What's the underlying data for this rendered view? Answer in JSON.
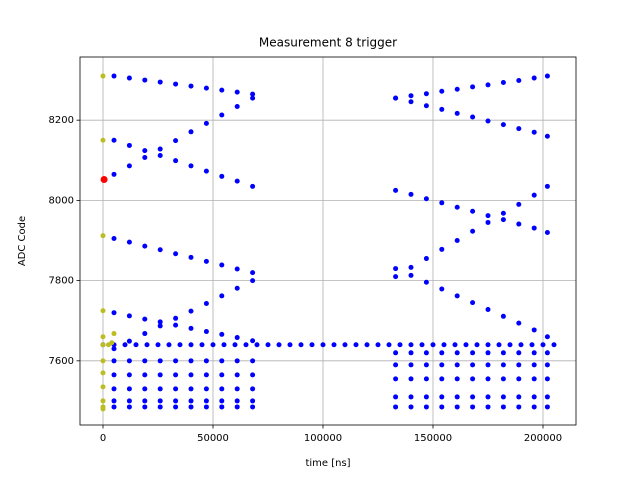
{
  "chart_data": {
    "type": "scatter",
    "title": "Measurement 8 trigger",
    "xlabel": "time [ns]",
    "ylabel": "ADC Code",
    "xlim": [
      -10455,
      215000
    ],
    "ylim": [
      7440,
      8357.5
    ],
    "xticks": [
      0,
      50000,
      100000,
      150000,
      200000
    ],
    "yticks": [
      7600,
      7800,
      8000,
      8200
    ],
    "grid": true,
    "series": [
      {
        "color": "#0000ff",
        "x": [
          0,
          5000,
          10000,
          15000,
          20000,
          25000,
          30000,
          35000,
          40000,
          45000,
          50000,
          55000,
          60000,
          65000,
          70000,
          75000,
          80000,
          85000,
          90000,
          95000,
          100000,
          105000,
          110000,
          115000,
          120000,
          125000,
          130000,
          135000,
          140000,
          145000,
          150000,
          155000,
          160000,
          165000,
          170000,
          175000,
          180000,
          185000,
          190000,
          195000,
          200000,
          205000
        ],
        "values": [
          7640,
          7640,
          7640,
          7640,
          7640,
          7640,
          7640,
          7640,
          7640,
          7640,
          7640,
          7640,
          7640,
          7640,
          7640,
          7640,
          7640,
          7640,
          7640,
          7640,
          7640,
          7640,
          7640,
          7640,
          7640,
          7640,
          7640,
          7640,
          7640,
          7640,
          7640,
          7640,
          7640,
          7640,
          7640,
          7640,
          7640,
          7640,
          7640,
          7640,
          7640,
          7640
        ]
      },
      {
        "color": "#0000ff",
        "x": [
          5000,
          12000,
          19000,
          26000,
          33000,
          40000,
          47000,
          54000,
          61000,
          68000
        ],
        "values": [
          8310,
          8305,
          8300,
          8295,
          8290,
          8285,
          8280,
          8275,
          8270,
          8265
        ]
      },
      {
        "color": "#0000ff",
        "x": [
          5000,
          12000,
          19000,
          26000,
          33000,
          40000,
          47000,
          54000,
          61000,
          68000
        ],
        "values": [
          8065,
          8086,
          8107,
          8128,
          8149,
          8171,
          8192,
          8213,
          8234,
          8255
        ]
      },
      {
        "color": "#0000ff",
        "x": [
          5000,
          12000,
          19000,
          26000,
          33000,
          40000,
          47000,
          54000,
          61000,
          68000
        ],
        "values": [
          8150,
          8137,
          8124,
          8112,
          8099,
          8086,
          8073,
          8060,
          8048,
          8035
        ]
      },
      {
        "color": "#0000ff",
        "x": [
          5000,
          12000,
          19000,
          26000,
          33000,
          40000,
          47000,
          54000,
          61000,
          68000
        ],
        "values": [
          7905,
          7896,
          7886,
          7877,
          7867,
          7858,
          7848,
          7839,
          7829,
          7820
        ]
      },
      {
        "color": "#0000ff",
        "x": [
          5000,
          12000,
          19000,
          26000,
          33000,
          40000,
          47000,
          54000,
          61000,
          68000
        ],
        "values": [
          7630,
          7649,
          7668,
          7687,
          7706,
          7724,
          7743,
          7762,
          7781,
          7800
        ]
      },
      {
        "color": "#0000ff",
        "x": [
          5000,
          12000,
          19000,
          26000,
          33000,
          40000,
          47000,
          54000,
          61000,
          68000
        ],
        "values": [
          7720,
          7712,
          7704,
          7697,
          7689,
          7681,
          7673,
          7666,
          7658,
          7650
        ]
      },
      {
        "color": "#0000ff",
        "x": [
          5000,
          12000,
          19000,
          26000,
          33000,
          40000,
          47000,
          54000,
          61000,
          68000
        ],
        "values": [
          7600,
          7600,
          7600,
          7600,
          7600,
          7600,
          7600,
          7600,
          7600,
          7600
        ]
      },
      {
        "color": "#0000ff",
        "x": [
          5000,
          12000,
          19000,
          26000,
          33000,
          40000,
          47000,
          54000,
          61000,
          68000
        ],
        "values": [
          7565,
          7565,
          7565,
          7565,
          7565,
          7565,
          7565,
          7565,
          7565,
          7565
        ]
      },
      {
        "color": "#0000ff",
        "x": [
          5000,
          12000,
          19000,
          26000,
          33000,
          40000,
          47000,
          54000,
          61000,
          68000
        ],
        "values": [
          7530,
          7530,
          7530,
          7530,
          7530,
          7530,
          7530,
          7530,
          7530,
          7530
        ]
      },
      {
        "color": "#0000ff",
        "x": [
          5000,
          12000,
          19000,
          26000,
          33000,
          40000,
          47000,
          54000,
          61000,
          68000
        ],
        "values": [
          7500,
          7500,
          7500,
          7500,
          7500,
          7500,
          7500,
          7500,
          7500,
          7500
        ]
      },
      {
        "color": "#0000ff",
        "x": [
          5000,
          12000,
          19000,
          26000,
          33000,
          40000,
          47000,
          54000,
          61000,
          68000
        ],
        "values": [
          7485,
          7485,
          7485,
          7485,
          7485,
          7485,
          7485,
          7485,
          7485,
          7485
        ]
      },
      {
        "color": "#0000ff",
        "x": [
          133000,
          140000,
          147000,
          154000,
          161000,
          168000,
          175000,
          182000,
          189000,
          196000,
          202000
        ],
        "values": [
          8255,
          8261,
          8266,
          8272,
          8277,
          8283,
          8288,
          8294,
          8299,
          8305,
          8310
        ]
      },
      {
        "color": "#0000ff",
        "x": [
          133000,
          140000,
          147000,
          154000,
          161000,
          168000,
          175000,
          182000,
          189000,
          196000,
          202000
        ],
        "values": [
          8255,
          8246,
          8236,
          8227,
          8217,
          8208,
          8198,
          8189,
          8179,
          8170,
          8160
        ]
      },
      {
        "color": "#0000ff",
        "x": [
          133000,
          140000,
          147000,
          154000,
          161000,
          168000,
          175000,
          182000,
          189000,
          196000,
          202000
        ],
        "values": [
          8025,
          8015,
          8004,
          7994,
          7983,
          7973,
          7962,
          7952,
          7941,
          7931,
          7920
        ]
      },
      {
        "color": "#0000ff",
        "x": [
          133000,
          140000,
          147000,
          154000,
          161000,
          168000,
          175000,
          182000,
          189000,
          196000,
          202000
        ],
        "values": [
          7810,
          7833,
          7855,
          7878,
          7900,
          7923,
          7945,
          7968,
          7990,
          8013,
          8035
        ]
      },
      {
        "color": "#0000ff",
        "x": [
          133000,
          140000,
          147000,
          154000,
          161000,
          168000,
          175000,
          182000,
          189000,
          196000,
          202000
        ],
        "values": [
          7830,
          7813,
          7796,
          7779,
          7762,
          7745,
          7728,
          7711,
          7694,
          7677,
          7660
        ]
      },
      {
        "color": "#0000ff",
        "x": [
          133000,
          140000,
          147000,
          154000,
          161000,
          168000,
          175000,
          182000,
          189000,
          196000,
          202000
        ],
        "values": [
          7620,
          7620,
          7620,
          7620,
          7620,
          7620,
          7620,
          7620,
          7620,
          7620,
          7620
        ]
      },
      {
        "color": "#0000ff",
        "x": [
          133000,
          140000,
          147000,
          154000,
          161000,
          168000,
          175000,
          182000,
          189000,
          196000,
          202000
        ],
        "values": [
          7590,
          7590,
          7590,
          7590,
          7590,
          7590,
          7590,
          7590,
          7590,
          7590,
          7590
        ]
      },
      {
        "color": "#0000ff",
        "x": [
          133000,
          140000,
          147000,
          154000,
          161000,
          168000,
          175000,
          182000,
          189000,
          196000,
          202000
        ],
        "values": [
          7555,
          7555,
          7555,
          7555,
          7555,
          7555,
          7555,
          7555,
          7555,
          7555,
          7555
        ]
      },
      {
        "color": "#0000ff",
        "x": [
          133000,
          140000,
          147000,
          154000,
          161000,
          168000,
          175000,
          182000,
          189000,
          196000,
          202000
        ],
        "values": [
          7510,
          7510,
          7510,
          7510,
          7510,
          7510,
          7510,
          7510,
          7510,
          7510,
          7510
        ]
      },
      {
        "color": "#0000ff",
        "x": [
          133000,
          140000,
          147000,
          154000,
          161000,
          168000,
          175000,
          182000,
          189000,
          196000,
          202000
        ],
        "values": [
          7485,
          7485,
          7485,
          7485,
          7485,
          7485,
          7485,
          7485,
          7485,
          7485,
          7485
        ]
      },
      {
        "color": "#bcbd22",
        "x": [
          0,
          0,
          0,
          0,
          0,
          0,
          0,
          0,
          0,
          0,
          0,
          0,
          2500,
          4000,
          5000
        ],
        "values": [
          8310,
          8150,
          7912,
          7725,
          7660,
          7640,
          7600,
          7570,
          7535,
          7500,
          7485,
          7480,
          7640,
          7645,
          7668
        ]
      },
      {
        "color": "#ff0000",
        "size": 7,
        "x": [
          500
        ],
        "values": [
          8052
        ]
      }
    ]
  }
}
